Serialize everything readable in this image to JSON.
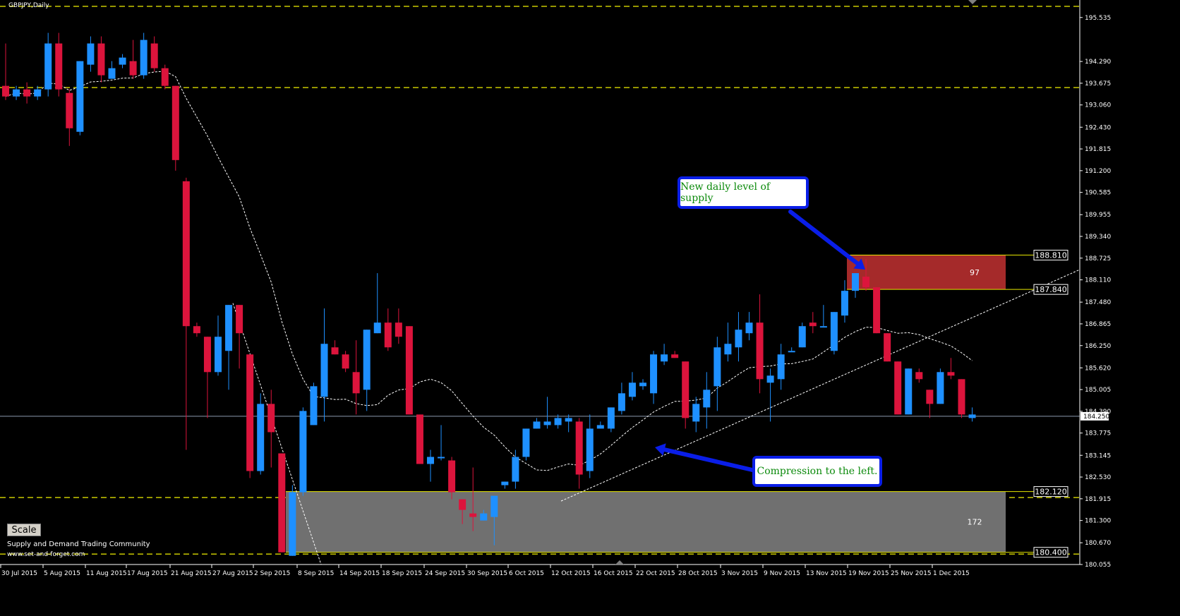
{
  "chart_title": "GBPJPY,Daily",
  "scale_label": "Scale",
  "community_text": "Supply and Demand Trading Community",
  "website_text": "www.set-and-forget.com",
  "colors": {
    "bull": "#1e90ff",
    "bear": "#dc143c",
    "dashed_level": "#c8c800",
    "supply_zone": "#a52a2a",
    "demand_zone": "#707070",
    "callout_border": "#0a1ee8",
    "callout_text": "#0b8a0b"
  },
  "annotations": {
    "supply_callout": "New daily level of supply",
    "compression_callout": "Compression to the left."
  },
  "chart_data": {
    "type": "candlestick",
    "title": "GBPJPY,Daily",
    "symbol": "GBPJPY",
    "timeframe": "Daily",
    "ylim": [
      180.055,
      195.85
    ],
    "y_ticks": [
      "195.535",
      "194.290",
      "193.675",
      "193.060",
      "192.430",
      "191.815",
      "191.200",
      "190.585",
      "189.955",
      "189.340",
      "188.725",
      "188.110",
      "187.480",
      "186.865",
      "186.250",
      "185.620",
      "185.005",
      "184.390",
      "183.775",
      "183.145",
      "182.530",
      "181.915",
      "181.300",
      "180.670",
      "180.055"
    ],
    "x_labels": [
      "30 Jul 2015",
      "5 Aug 2015",
      "11 Aug 2015",
      "17 Aug 2015",
      "21 Aug 2015",
      "27 Aug 2015",
      "2 Sep 2015",
      "8 Sep 2015",
      "14 Sep 2015",
      "18 Sep 2015",
      "24 Sep 2015",
      "30 Sep 2015",
      "6 Oct 2015",
      "12 Oct 2015",
      "16 Oct 2015",
      "22 Oct 2015",
      "28 Oct 2015",
      "3 Nov 2015",
      "9 Nov 2015",
      "13 Nov 2015",
      "19 Nov 2015",
      "25 Nov 2015",
      "1 Dec 2015"
    ],
    "current_price": "184.250",
    "dashed_levels": [
      195.85,
      193.55,
      181.95,
      180.35
    ],
    "zones": [
      {
        "name": "supply",
        "high": "188.810",
        "low": "187.840",
        "count": "97"
      },
      {
        "name": "demand",
        "high": "182.120",
        "low": "180.400",
        "count": "172"
      }
    ],
    "candles": [
      {
        "o": 193.6,
        "h": 194.8,
        "l": 193.2,
        "c": 193.3
      },
      {
        "o": 193.3,
        "h": 193.6,
        "l": 193.2,
        "c": 193.5
      },
      {
        "o": 193.5,
        "h": 193.7,
        "l": 193.1,
        "c": 193.3
      },
      {
        "o": 193.3,
        "h": 193.6,
        "l": 193.2,
        "c": 193.5
      },
      {
        "o": 193.5,
        "h": 195.1,
        "l": 193.3,
        "c": 194.8
      },
      {
        "o": 194.8,
        "h": 195.1,
        "l": 193.3,
        "c": 193.5
      },
      {
        "o": 193.4,
        "h": 193.5,
        "l": 191.9,
        "c": 192.4
      },
      {
        "o": 192.3,
        "h": 194.3,
        "l": 192.2,
        "c": 194.3
      },
      {
        "o": 194.2,
        "h": 195.0,
        "l": 194.0,
        "c": 194.8
      },
      {
        "o": 194.8,
        "h": 195.0,
        "l": 193.7,
        "c": 193.9
      },
      {
        "o": 193.8,
        "h": 194.3,
        "l": 193.8,
        "c": 194.1
      },
      {
        "o": 194.2,
        "h": 194.5,
        "l": 194.1,
        "c": 194.4
      },
      {
        "o": 194.3,
        "h": 194.9,
        "l": 193.8,
        "c": 193.9
      },
      {
        "o": 193.9,
        "h": 195.1,
        "l": 193.8,
        "c": 194.9
      },
      {
        "o": 194.8,
        "h": 195.0,
        "l": 194.0,
        "c": 194.1
      },
      {
        "o": 194.1,
        "h": 194.2,
        "l": 193.5,
        "c": 193.6
      },
      {
        "o": 193.6,
        "h": 193.6,
        "l": 191.2,
        "c": 191.5
      },
      {
        "o": 190.9,
        "h": 191.0,
        "l": 183.3,
        "c": 186.8
      },
      {
        "o": 186.8,
        "h": 186.9,
        "l": 186.5,
        "c": 186.6
      },
      {
        "o": 186.5,
        "h": 186.5,
        "l": 184.2,
        "c": 185.5
      },
      {
        "o": 185.5,
        "h": 187.1,
        "l": 185.4,
        "c": 186.5
      },
      {
        "o": 186.1,
        "h": 187.4,
        "l": 185.0,
        "c": 187.4
      },
      {
        "o": 187.4,
        "h": 187.4,
        "l": 185.6,
        "c": 186.6
      },
      {
        "o": 186.0,
        "h": 186.0,
        "l": 182.5,
        "c": 182.7
      },
      {
        "o": 182.7,
        "h": 184.9,
        "l": 182.6,
        "c": 184.6
      },
      {
        "o": 184.6,
        "h": 185.0,
        "l": 182.8,
        "c": 183.8
      },
      {
        "o": 183.2,
        "h": 183.2,
        "l": 180.4,
        "c": 180.4
      },
      {
        "o": 180.3,
        "h": 182.3,
        "l": 180.3,
        "c": 182.1
      },
      {
        "o": 182.1,
        "h": 184.5,
        "l": 182.0,
        "c": 184.4
      },
      {
        "o": 184.0,
        "h": 185.2,
        "l": 184.0,
        "c": 185.1
      },
      {
        "o": 184.8,
        "h": 187.3,
        "l": 184.1,
        "c": 186.3
      },
      {
        "o": 186.2,
        "h": 186.4,
        "l": 186.0,
        "c": 186.0
      },
      {
        "o": 186.0,
        "h": 186.1,
        "l": 185.5,
        "c": 185.6
      },
      {
        "o": 185.5,
        "h": 186.4,
        "l": 184.3,
        "c": 184.9
      },
      {
        "o": 185.0,
        "h": 186.7,
        "l": 184.4,
        "c": 186.7
      },
      {
        "o": 186.6,
        "h": 188.3,
        "l": 186.6,
        "c": 186.9
      },
      {
        "o": 186.9,
        "h": 187.3,
        "l": 186.1,
        "c": 186.2
      },
      {
        "o": 186.9,
        "h": 187.3,
        "l": 186.3,
        "c": 186.5
      },
      {
        "o": 186.8,
        "h": 186.8,
        "l": 184.3,
        "c": 184.3
      },
      {
        "o": 184.3,
        "h": 184.3,
        "l": 182.9,
        "c": 182.9
      },
      {
        "o": 182.9,
        "h": 183.3,
        "l": 182.4,
        "c": 183.1
      },
      {
        "o": 183.1,
        "h": 184.0,
        "l": 183.0,
        "c": 183.1
      },
      {
        "o": 183.0,
        "h": 183.1,
        "l": 181.9,
        "c": 182.1
      },
      {
        "o": 181.9,
        "h": 181.9,
        "l": 181.2,
        "c": 181.6
      },
      {
        "o": 181.5,
        "h": 182.8,
        "l": 181.0,
        "c": 181.4
      },
      {
        "o": 181.3,
        "h": 181.6,
        "l": 181.3,
        "c": 181.5
      },
      {
        "o": 181.4,
        "h": 182.0,
        "l": 180.6,
        "c": 182.0
      },
      {
        "o": 182.3,
        "h": 182.4,
        "l": 182.2,
        "c": 182.4
      },
      {
        "o": 182.4,
        "h": 183.3,
        "l": 182.2,
        "c": 183.1
      },
      {
        "o": 183.1,
        "h": 183.9,
        "l": 183.0,
        "c": 183.9
      },
      {
        "o": 183.9,
        "h": 184.2,
        "l": 183.9,
        "c": 184.1
      },
      {
        "o": 184.0,
        "h": 184.8,
        "l": 183.9,
        "c": 184.1
      },
      {
        "o": 184.0,
        "h": 184.3,
        "l": 183.9,
        "c": 184.2
      },
      {
        "o": 184.1,
        "h": 184.3,
        "l": 183.8,
        "c": 184.2
      },
      {
        "o": 184.1,
        "h": 184.2,
        "l": 182.2,
        "c": 182.6
      },
      {
        "o": 182.7,
        "h": 184.3,
        "l": 182.5,
        "c": 183.9
      },
      {
        "o": 183.9,
        "h": 184.1,
        "l": 183.9,
        "c": 184.0
      },
      {
        "o": 183.9,
        "h": 184.5,
        "l": 183.8,
        "c": 184.5
      },
      {
        "o": 184.4,
        "h": 185.2,
        "l": 184.3,
        "c": 184.9
      },
      {
        "o": 184.8,
        "h": 185.5,
        "l": 184.7,
        "c": 185.2
      },
      {
        "o": 185.1,
        "h": 185.3,
        "l": 185.0,
        "c": 185.2
      },
      {
        "o": 184.9,
        "h": 186.1,
        "l": 184.6,
        "c": 186.0
      },
      {
        "o": 185.8,
        "h": 186.3,
        "l": 185.7,
        "c": 186.0
      },
      {
        "o": 186.0,
        "h": 186.1,
        "l": 185.9,
        "c": 185.9
      },
      {
        "o": 185.8,
        "h": 185.8,
        "l": 183.9,
        "c": 184.2
      },
      {
        "o": 184.1,
        "h": 184.8,
        "l": 183.8,
        "c": 184.6
      },
      {
        "o": 184.5,
        "h": 185.5,
        "l": 183.9,
        "c": 185.0
      },
      {
        "o": 185.1,
        "h": 186.5,
        "l": 184.4,
        "c": 186.2
      },
      {
        "o": 186.0,
        "h": 186.9,
        "l": 185.8,
        "c": 186.3
      },
      {
        "o": 186.2,
        "h": 187.2,
        "l": 185.8,
        "c": 186.7
      },
      {
        "o": 186.6,
        "h": 187.2,
        "l": 186.4,
        "c": 186.9
      },
      {
        "o": 186.9,
        "h": 187.7,
        "l": 184.9,
        "c": 185.3
      },
      {
        "o": 185.2,
        "h": 185.6,
        "l": 184.1,
        "c": 185.4
      },
      {
        "o": 185.3,
        "h": 186.3,
        "l": 185.0,
        "c": 186.0
      },
      {
        "o": 186.1,
        "h": 186.2,
        "l": 186.1,
        "c": 186.1
      },
      {
        "o": 186.2,
        "h": 186.9,
        "l": 186.2,
        "c": 186.8
      },
      {
        "o": 186.9,
        "h": 187.2,
        "l": 186.6,
        "c": 186.8
      },
      {
        "o": 186.8,
        "h": 187.4,
        "l": 186.8,
        "c": 186.8
      },
      {
        "o": 186.1,
        "h": 187.2,
        "l": 186.0,
        "c": 187.2
      },
      {
        "o": 187.1,
        "h": 188.1,
        "l": 186.9,
        "c": 187.8
      },
      {
        "o": 187.8,
        "h": 188.3,
        "l": 187.6,
        "c": 188.3
      },
      {
        "o": 188.2,
        "h": 188.7,
        "l": 187.8,
        "c": 187.9
      },
      {
        "o": 187.9,
        "h": 187.9,
        "l": 186.6,
        "c": 186.6
      },
      {
        "o": 186.6,
        "h": 186.6,
        "l": 185.8,
        "c": 185.8
      },
      {
        "o": 185.8,
        "h": 185.8,
        "l": 184.3,
        "c": 184.3
      },
      {
        "o": 184.3,
        "h": 185.6,
        "l": 184.3,
        "c": 185.6
      },
      {
        "o": 185.5,
        "h": 185.6,
        "l": 185.2,
        "c": 185.3
      },
      {
        "o": 185.0,
        "h": 185.0,
        "l": 184.2,
        "c": 184.6
      },
      {
        "o": 184.6,
        "h": 185.6,
        "l": 184.6,
        "c": 185.5
      },
      {
        "o": 185.5,
        "h": 185.9,
        "l": 185.3,
        "c": 185.4
      },
      {
        "o": 185.3,
        "h": 185.3,
        "l": 184.2,
        "c": 184.3
      },
      {
        "o": 184.2,
        "h": 184.5,
        "l": 184.1,
        "c": 184.3
      }
    ]
  }
}
